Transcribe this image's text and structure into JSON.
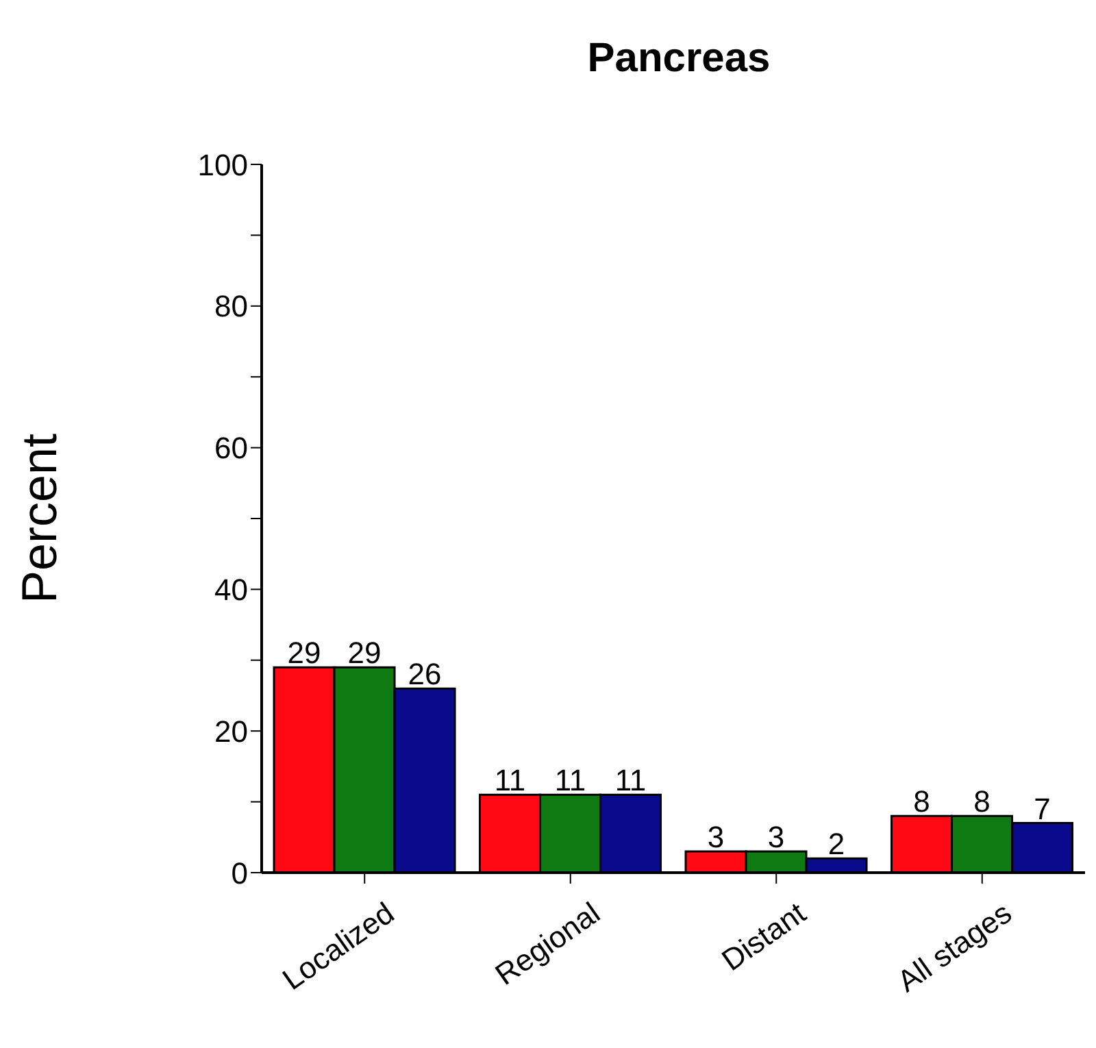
{
  "chart_data": {
    "type": "bar",
    "title": "Pancreas",
    "ylabel": "Percent",
    "categories": [
      "Localized",
      "Regional",
      "Distant",
      "All stages"
    ],
    "series": [
      {
        "color": "#ff0a14",
        "values": [
          29,
          11,
          3,
          8
        ]
      },
      {
        "color": "#0f7a12",
        "values": [
          29,
          11,
          3,
          8
        ]
      },
      {
        "color": "#0a0a8c",
        "values": [
          26,
          11,
          2,
          7
        ]
      }
    ],
    "ylim": [
      0,
      100
    ],
    "yticks": [
      0,
      {
        "value": 10,
        "label": null
      },
      20,
      {
        "value": 30,
        "label": null
      },
      40,
      {
        "value": 50,
        "label": null
      },
      60,
      {
        "value": 70,
        "label": null
      },
      80,
      {
        "value": 90,
        "label": null
      },
      100
    ],
    "data_labels": true,
    "grid": false,
    "legend": false
  }
}
